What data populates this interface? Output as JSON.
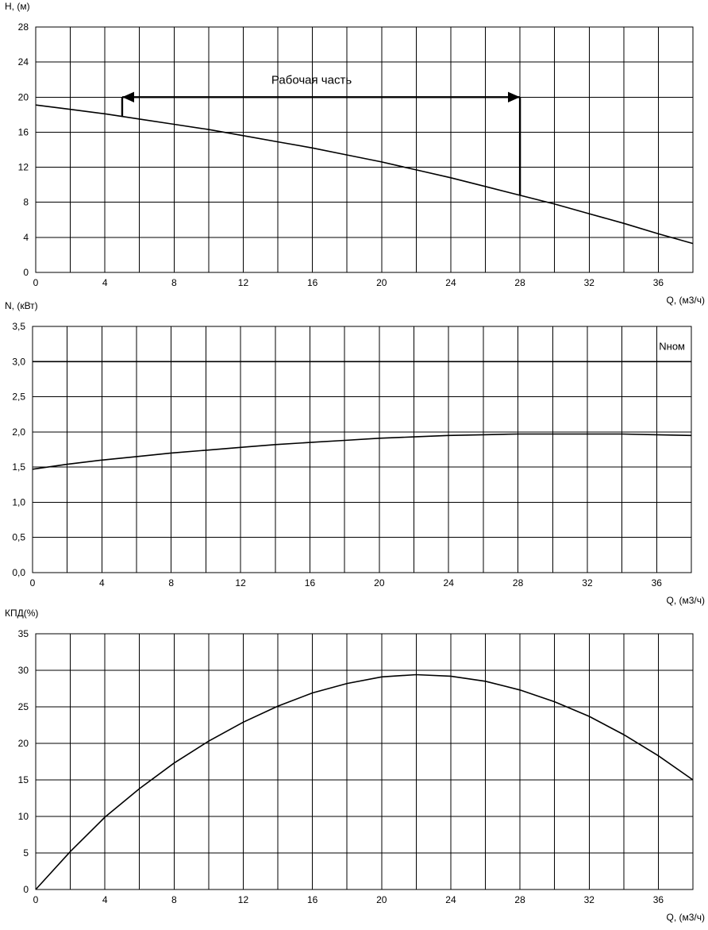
{
  "chart_data": [
    {
      "type": "line",
      "ylabel": "H, (м)",
      "xlabel": "Q, (м3/ч)",
      "xlim": [
        0,
        38
      ],
      "ylim": [
        0,
        28
      ],
      "x_ticks": [
        0,
        4,
        8,
        12,
        16,
        20,
        24,
        28,
        32,
        36
      ],
      "x_tick_labels": [
        "0",
        "4",
        "8",
        "12",
        "16",
        "20",
        "24",
        "28",
        "32",
        "36"
      ],
      "y_ticks": [
        0,
        4,
        8,
        12,
        16,
        20,
        24,
        28
      ],
      "y_tick_labels": [
        "0",
        "4",
        "8",
        "12",
        "16",
        "20",
        "24",
        "28"
      ],
      "grid": true,
      "series": [
        {
          "x": [
            0,
            2,
            4,
            6,
            8,
            10,
            12,
            14,
            16,
            18,
            20,
            22,
            24,
            26,
            28,
            30,
            32,
            34,
            36,
            38
          ],
          "values": [
            19.1,
            18.6,
            18.1,
            17.5,
            16.9,
            16.3,
            15.6,
            14.9,
            14.2,
            13.4,
            12.6,
            11.7,
            10.8,
            9.8,
            8.8,
            7.8,
            6.7,
            5.6,
            4.4,
            3.3
          ]
        }
      ],
      "annotations": [
        {
          "text": "Рабочая часть",
          "type": "double-arrow",
          "x_start": 5,
          "x_end": 28,
          "y": 20,
          "left_drop_to": 17.8,
          "right_drop_to": 8.8
        }
      ]
    },
    {
      "type": "line",
      "ylabel": "N, (кВт)",
      "xlabel": "Q, (м3/ч)",
      "xlim": [
        0,
        38
      ],
      "ylim": [
        0,
        3.5
      ],
      "x_ticks": [
        0,
        4,
        8,
        12,
        16,
        20,
        24,
        28,
        32,
        36
      ],
      "x_tick_labels": [
        "0",
        "4",
        "8",
        "12",
        "16",
        "20",
        "24",
        "28",
        "32",
        "36"
      ],
      "y_ticks": [
        0,
        0.5,
        1,
        1.5,
        2,
        2.5,
        3,
        3.5
      ],
      "y_tick_labels": [
        "0,0",
        "0,5",
        "1,0",
        "1,5",
        "2,0",
        "2,5",
        "3,0",
        "3,5"
      ],
      "grid": true,
      "series": [
        {
          "x": [
            0,
            2,
            4,
            6,
            8,
            10,
            12,
            14,
            16,
            18,
            20,
            22,
            24,
            26,
            28,
            30,
            32,
            34,
            36,
            38
          ],
          "values": [
            1.47,
            1.54,
            1.6,
            1.65,
            1.7,
            1.74,
            1.78,
            1.82,
            1.85,
            1.88,
            1.91,
            1.93,
            1.95,
            1.96,
            1.97,
            1.97,
            1.97,
            1.97,
            1.96,
            1.95
          ]
        },
        {
          "name": "Nном",
          "x": [
            0,
            38
          ],
          "values": [
            3.0,
            3.0
          ]
        }
      ]
    },
    {
      "type": "line",
      "ylabel": "КПД(%)",
      "xlabel": "Q, (м3/ч)",
      "xlim": [
        0,
        38
      ],
      "ylim": [
        0,
        35
      ],
      "x_ticks": [
        0,
        4,
        8,
        12,
        16,
        20,
        24,
        28,
        32,
        36
      ],
      "x_tick_labels": [
        "0",
        "4",
        "8",
        "12",
        "16",
        "20",
        "24",
        "28",
        "32",
        "36"
      ],
      "y_ticks": [
        0,
        5,
        10,
        15,
        20,
        25,
        30,
        35
      ],
      "y_tick_labels": [
        "0",
        "5",
        "10",
        "15",
        "20",
        "25",
        "30",
        "35"
      ],
      "grid": true,
      "series": [
        {
          "x": [
            0,
            2,
            4,
            6,
            8,
            10,
            12,
            14,
            16,
            18,
            20,
            22,
            24,
            26,
            28,
            30,
            32,
            34,
            36,
            38
          ],
          "values": [
            0,
            5.2,
            9.9,
            13.8,
            17.3,
            20.3,
            22.9,
            25.1,
            26.9,
            28.2,
            29.1,
            29.4,
            29.2,
            28.5,
            27.3,
            25.7,
            23.7,
            21.2,
            18.3,
            15.0
          ]
        }
      ]
    }
  ]
}
